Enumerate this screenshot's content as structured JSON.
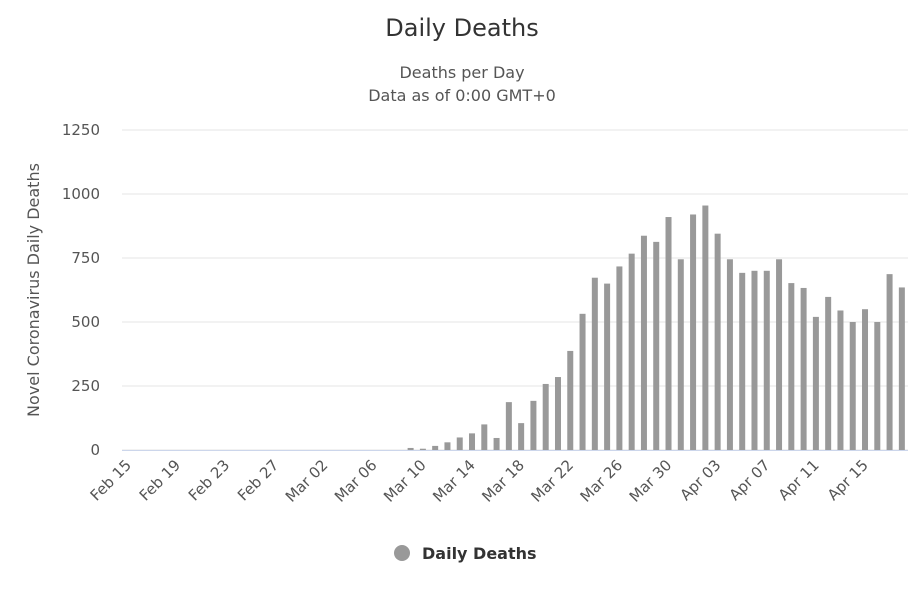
{
  "chart_data": {
    "type": "bar",
    "title": "Daily Deaths",
    "subtitle": [
      "Deaths per Day",
      "Data as of 0:00 GMT+0"
    ],
    "y_label": "Novel Coronavirus Daily Deaths",
    "categories": [
      "Feb 15",
      null,
      null,
      null,
      "Feb 19",
      null,
      null,
      null,
      "Feb 23",
      null,
      null,
      null,
      "Feb 27",
      null,
      null,
      null,
      "Mar 02",
      null,
      null,
      null,
      "Mar 06",
      null,
      null,
      null,
      "Mar 10",
      null,
      null,
      null,
      "Mar 14",
      null,
      null,
      null,
      "Mar 18",
      null,
      null,
      null,
      "Mar 22",
      null,
      null,
      null,
      "Mar 26",
      null,
      null,
      null,
      "Mar 30",
      null,
      null,
      null,
      "Apr 03",
      null,
      null,
      null,
      "Apr 07",
      null,
      null,
      null,
      "Apr 11",
      null,
      null,
      null,
      "Apr 15",
      null,
      null,
      null
    ],
    "series": [
      {
        "name": "Daily Deaths",
        "color": "#999999",
        "values": [
          0,
          0,
          0,
          0,
          0,
          0,
          0,
          0,
          0,
          0,
          0,
          0,
          0,
          0,
          0,
          0,
          0,
          0,
          0,
          0,
          0,
          0,
          0,
          8,
          5,
          16,
          30,
          49,
          65,
          100,
          47,
          187,
          105,
          192,
          258,
          285,
          387,
          532,
          673,
          650,
          717,
          767,
          837,
          813,
          910,
          745,
          920,
          955,
          845,
          745,
          692,
          700,
          700,
          745,
          652,
          633,
          520,
          598,
          545,
          500,
          550,
          500,
          687,
          635
        ]
      }
    ],
    "ylim": [
      0,
      1250
    ],
    "yticks": [
      0,
      250,
      500,
      750,
      1000,
      1250
    ],
    "grid": true,
    "legend": "bottom"
  }
}
